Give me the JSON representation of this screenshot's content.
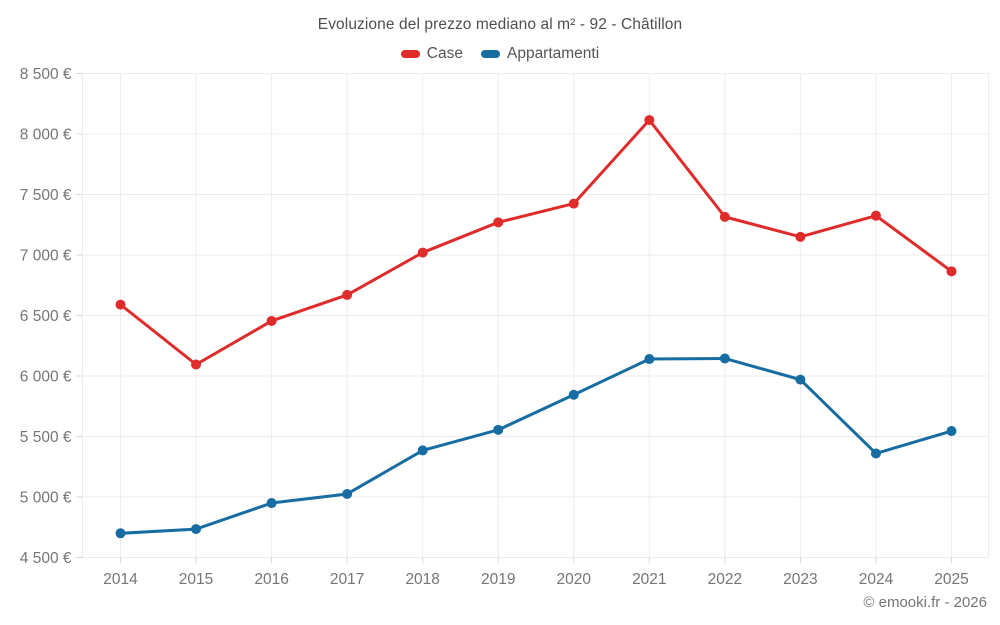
{
  "header": {
    "title": "Evoluzione del prezzo mediano al m² - 92 - Châtillon"
  },
  "footer": {
    "copyright": "© emooki.fr - 2026"
  },
  "chart_data": {
    "type": "line",
    "title": "Evoluzione del prezzo mediano al m² - 92 - Châtillon",
    "categories": [
      "2014",
      "2015",
      "2016",
      "2017",
      "2018",
      "2019",
      "2020",
      "2021",
      "2022",
      "2023",
      "2024",
      "2025"
    ],
    "series": [
      {
        "name": "Case",
        "color": "#e02b2b",
        "values": [
          6590,
          6095,
          6455,
          6670,
          7020,
          7270,
          7425,
          8115,
          7315,
          7150,
          7325,
          6865
        ]
      },
      {
        "name": "Appartamenti",
        "color": "#176ca2",
        "values": [
          4700,
          4735,
          4950,
          5025,
          5385,
          5555,
          5845,
          6140,
          6145,
          5970,
          5360,
          5545
        ]
      }
    ],
    "ylabel": "",
    "xlabel": "",
    "ylim": [
      4500,
      8500
    ],
    "ytick_step": 500,
    "ytick_labels": [
      "4 500 €",
      "5 000 €",
      "5 500 €",
      "6 000 €",
      "6 500 €",
      "7 000 €",
      "7 500 €",
      "8 000 €",
      "8 500 €"
    ],
    "grid": true,
    "legend_position": "top",
    "colors": {
      "gridline": "#ececec",
      "tick": "#d6d6d6",
      "axis_label": "#757575",
      "title": "#4f4f4f",
      "legend_text": "#555555"
    }
  }
}
